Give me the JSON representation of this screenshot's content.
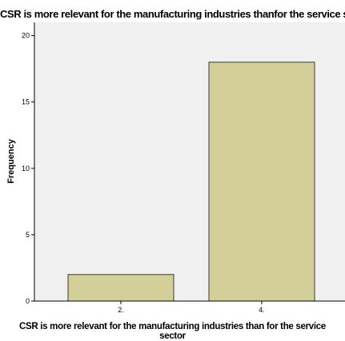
{
  "chart_data": {
    "type": "bar",
    "title": "CSR is more relevant for the manufacturing industries thanfor the service sector",
    "xlabel_lines": [
      "CSR is more relevant for the manufacturing industries than for the service",
      "sector"
    ],
    "ylabel": "Frequency",
    "categories": [
      "2.",
      "4."
    ],
    "values": [
      2,
      18
    ],
    "ylim": [
      0,
      21
    ],
    "yticks": [
      0,
      5,
      10,
      15,
      20
    ],
    "grid": false,
    "colors": {
      "bar_fill": "#d4cf98",
      "bar_stroke": "#3a3a3a",
      "plot_background": "#f0f0f0"
    }
  }
}
